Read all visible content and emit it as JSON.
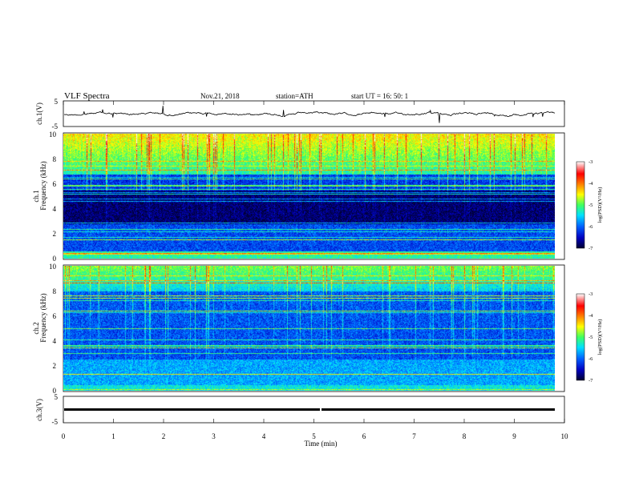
{
  "header": {
    "title": "VLF  Spectra",
    "date": "Nov.21, 2018",
    "station": "station=ATH",
    "start": "start  UT  =   16: 50: 1"
  },
  "colors": {
    "colormap": [
      "#000030",
      "#0000c0",
      "#0060ff",
      "#00e0ff",
      "#40ff60",
      "#ffff00",
      "#ff8000",
      "#ff0000",
      "#ffffff"
    ],
    "waveform": "#000000"
  },
  "chart_data": [
    {
      "type": "line",
      "ylabel": "ch.1(V)",
      "ylim": [
        -5,
        5
      ],
      "yticks": [
        "5",
        "-5"
      ],
      "xlim": [
        0,
        10
      ],
      "description_series": "broadband waveform approx 0 V with spikes"
    },
    {
      "type": "heatmap",
      "ylabel_top": "ch.1",
      "ylabel": "Frequency  (kHz)",
      "ylim": [
        0,
        10
      ],
      "yticks": [
        "0",
        "2",
        "4",
        "6",
        "8",
        "10"
      ],
      "xlim": [
        0,
        9.85
      ],
      "colorbar": {
        "label": "log(PSD)(V²/Hz)",
        "range": [
          -7,
          -3
        ],
        "ticks": [
          "-3",
          "-4",
          "-5",
          "-6",
          "-7"
        ]
      }
    },
    {
      "type": "heatmap",
      "ylabel_top": "ch.2",
      "ylabel": "Frequency  (kHz)",
      "ylim": [
        0,
        10
      ],
      "yticks": [
        "0",
        "2",
        "4",
        "6",
        "8",
        "10"
      ],
      "xlim": [
        0,
        9.85
      ],
      "colorbar": {
        "label": "log(PSD)(V²/Hz)",
        "range": [
          -7,
          -3
        ],
        "ticks": [
          "-3",
          "-4",
          "-5",
          "-6",
          "-7"
        ]
      }
    },
    {
      "type": "line",
      "ylabel": "ch.3(V)",
      "ylim": [
        -5,
        5
      ],
      "yticks": [
        "5",
        "-5"
      ],
      "xlim": [
        0,
        10
      ],
      "xlabel": "Time  (min)",
      "xticks": [
        "0",
        "1",
        "2",
        "3",
        "4",
        "5",
        "6",
        "7",
        "8",
        "9",
        "10"
      ]
    }
  ]
}
